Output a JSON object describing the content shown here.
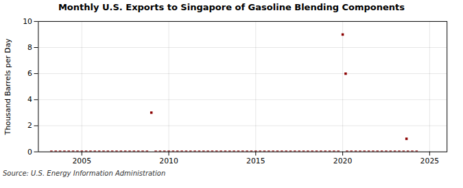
{
  "chart_data": {
    "type": "scatter",
    "title": "Monthly U.S. Exports to Singapore of Gasoline Blending Components",
    "ylabel": "Thousand Barrels per Day",
    "source": "Source: U.S. Energy Information Administration",
    "color": "#8b0000",
    "marker": "square",
    "grid": true,
    "xlim": [
      2002.5,
      2026.0
    ],
    "ylim": [
      0,
      10
    ],
    "xticks": [
      2005,
      2010,
      2015,
      2020,
      2025
    ],
    "yticks": [
      0,
      2,
      4,
      6,
      8,
      10
    ],
    "x": [
      2003.25,
      2003.5,
      2003.75,
      2004.0,
      2004.25,
      2004.5,
      2004.75,
      2005.0,
      2005.25,
      2005.5,
      2005.75,
      2006.0,
      2006.25,
      2006.5,
      2006.75,
      2007.0,
      2007.25,
      2007.5,
      2007.75,
      2008.0,
      2008.25,
      2008.5,
      2008.75,
      2009.0,
      2009.25,
      2009.5,
      2009.75,
      2010.0,
      2010.25,
      2010.5,
      2010.75,
      2011.0,
      2011.25,
      2011.5,
      2011.75,
      2012.0,
      2012.25,
      2012.5,
      2012.75,
      2013.0,
      2013.25,
      2013.5,
      2013.75,
      2014.0,
      2014.25,
      2014.5,
      2014.75,
      2015.0,
      2015.25,
      2015.5,
      2015.75,
      2016.0,
      2016.25,
      2016.5,
      2016.75,
      2017.0,
      2017.25,
      2017.5,
      2017.75,
      2018.0,
      2018.25,
      2018.5,
      2018.75,
      2019.0,
      2019.25,
      2019.5,
      2019.75,
      2020.0,
      2020.17,
      2020.25,
      2020.5,
      2020.75,
      2021.0,
      2021.25,
      2021.5,
      2021.75,
      2022.0,
      2022.25,
      2022.5,
      2022.75,
      2023.0,
      2023.25,
      2023.5,
      2023.67,
      2023.75,
      2024.0,
      2024.25
    ],
    "values": [
      0.0,
      0.0,
      0.0,
      0.0,
      0.0,
      0.0,
      0.0,
      0.0,
      0.0,
      0.0,
      0.0,
      0.0,
      0.0,
      0.0,
      0.0,
      0.0,
      0.0,
      0.0,
      0.0,
      0.0,
      0.0,
      0.0,
      0.0,
      3.0,
      0.0,
      0.0,
      0.0,
      0.0,
      0.0,
      0.0,
      0.0,
      0.0,
      0.0,
      0.0,
      0.0,
      0.0,
      0.0,
      0.0,
      0.0,
      0.0,
      0.0,
      0.0,
      0.0,
      0.0,
      0.0,
      0.0,
      0.0,
      0.0,
      0.0,
      0.0,
      0.0,
      0.0,
      0.0,
      0.0,
      0.0,
      0.0,
      0.0,
      0.0,
      0.0,
      0.0,
      0.0,
      0.0,
      0.0,
      0.0,
      0.0,
      0.0,
      0.0,
      9.0,
      6.0,
      0.0,
      0.0,
      0.0,
      0.0,
      0.0,
      0.0,
      0.0,
      0.0,
      0.0,
      0.0,
      0.0,
      0.0,
      0.0,
      0.0,
      1.0,
      0.0,
      0.0,
      0.0
    ]
  }
}
